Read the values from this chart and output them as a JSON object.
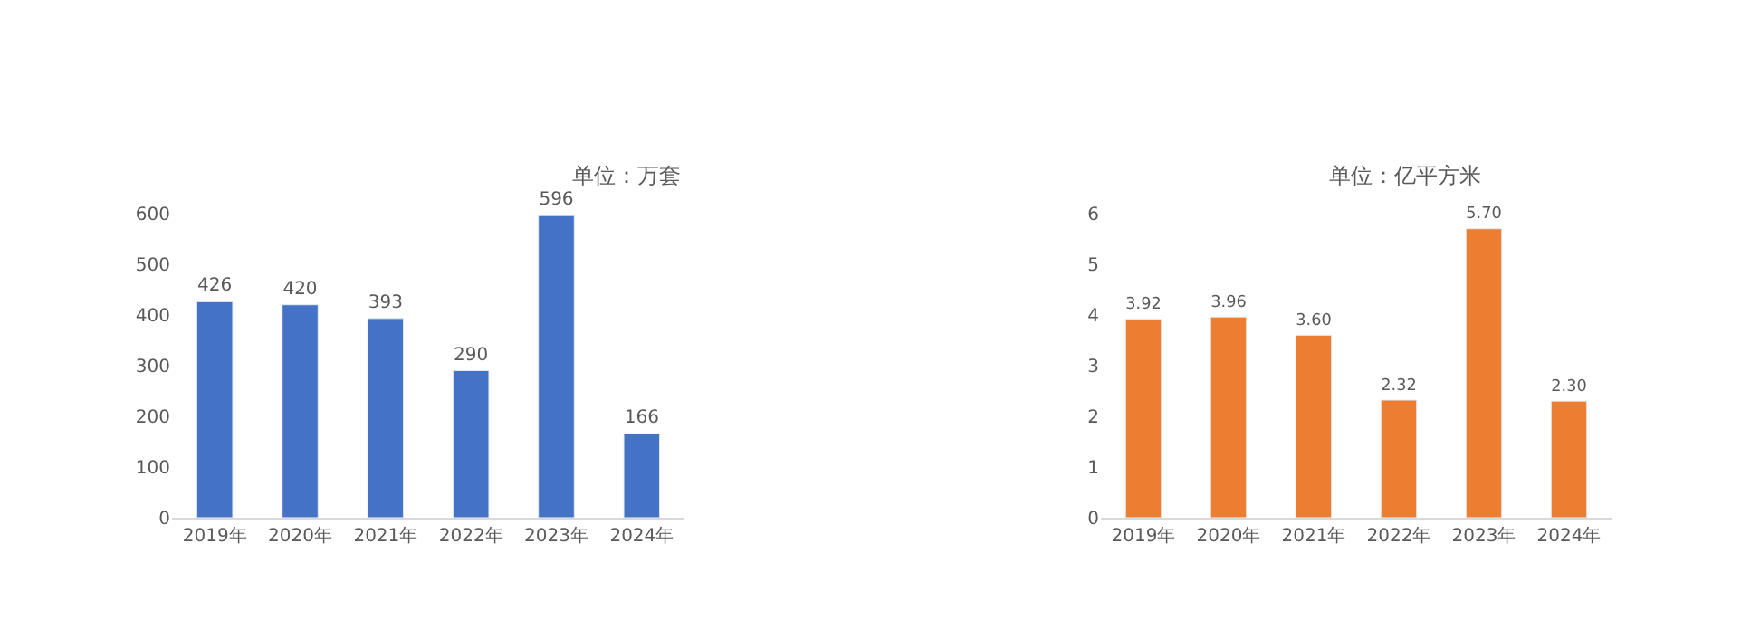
{
  "chart_data": [
    {
      "type": "bar",
      "annotations": [
        "单位：万套"
      ],
      "categories": [
        "2019年",
        "2020年",
        "2021年",
        "2022年",
        "2023年",
        "2024年"
      ],
      "values": [
        426,
        420,
        393,
        290,
        596,
        166
      ],
      "color": "#4472c4",
      "ylim": [
        0,
        600
      ],
      "yticks": [
        0,
        100,
        200,
        300,
        400,
        500,
        600
      ],
      "data_labels": true
    },
    {
      "type": "bar",
      "annotations": [
        "单位：亿平方米"
      ],
      "categories": [
        "2019年",
        "2020年",
        "2021年",
        "2022年",
        "2023年",
        "2024年"
      ],
      "values": [
        3.92,
        3.96,
        3.6,
        2.32,
        5.7,
        2.3
      ],
      "value_labels": [
        "3.92",
        "3.96",
        "3.60",
        "2.32",
        "5.70",
        "2.30"
      ],
      "color": "#ed7d31",
      "ylim": [
        0,
        6
      ],
      "yticks": [
        0,
        1,
        2,
        3,
        4,
        5,
        6
      ]
    }
  ]
}
